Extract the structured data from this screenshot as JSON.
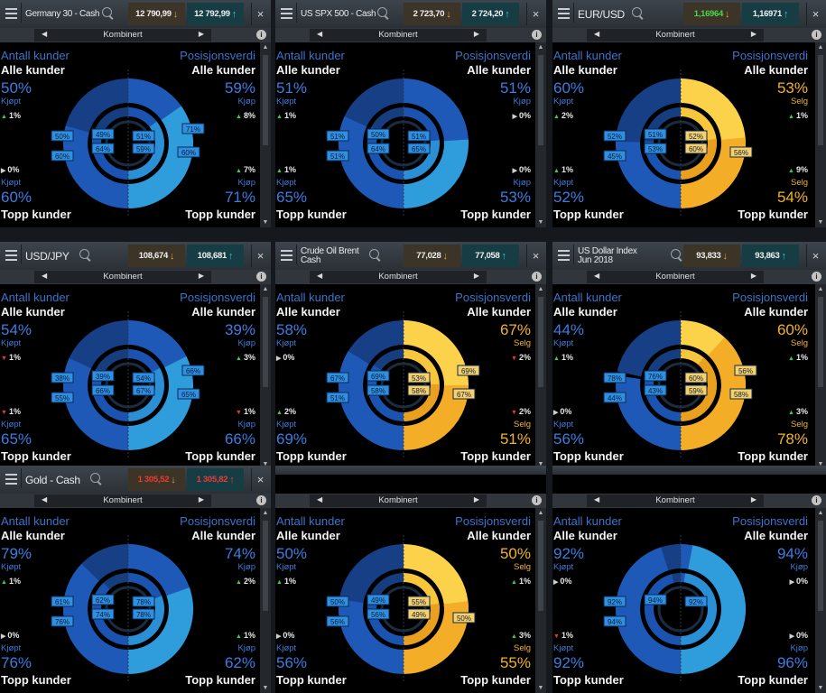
{
  "common": {
    "antall": "Antall kunder",
    "posisjon": "Posisjonsverdi",
    "alle": "Alle kunder",
    "topp": "Topp kunder",
    "mode": "Kombinert",
    "close": "×",
    "info": "i"
  },
  "panels": [
    {
      "symbol": "Germany 30 - Cash",
      "sell": "12 790,99",
      "buy": "12 792,99",
      "sell_arrow": "down",
      "buy_arrow": "up",
      "price_colors": [
        "#f0f0f0",
        "#f0f0f0"
      ],
      "tl": {
        "pct": "50%",
        "side": "Kjøpt",
        "chg": "1%",
        "dir": "up"
      },
      "tr": {
        "pct": "59%",
        "side": "Kjøp",
        "chg": "8%",
        "dir": "up"
      },
      "bl": {
        "pct": "60%",
        "side": "Kjøpt",
        "chg": "0%",
        "dir": "flat"
      },
      "br": {
        "pct": "71%",
        "side": "Kjøp",
        "chg": "7%",
        "dir": "up"
      },
      "arc_left": "blue",
      "arc_right": "blue",
      "colors": {
        "tl": "blue",
        "tr": "blue",
        "bl": "blue",
        "br": "blue"
      },
      "labels": [
        "50%",
        "49%",
        "51%",
        "60%",
        "64%",
        "59%",
        "60%",
        "71%"
      ]
    },
    {
      "symbol": "US SPX 500 - Cash",
      "sell": "2 723,70",
      "buy": "2 724,20",
      "sell_arrow": "down",
      "buy_arrow": "up",
      "price_colors": [
        "#f0f0f0",
        "#f0f0f0"
      ],
      "tl": {
        "pct": "51%",
        "side": "Kjøpt",
        "chg": "1%",
        "dir": "up"
      },
      "tr": {
        "pct": "51%",
        "side": "Kjøp",
        "chg": "0%",
        "dir": "flat"
      },
      "bl": {
        "pct": "65%",
        "side": "Kjøpt",
        "chg": "1%",
        "dir": "up"
      },
      "br": {
        "pct": "53%",
        "side": "Kjøp",
        "chg": "0%",
        "dir": "flat"
      },
      "arc_left": "blue",
      "arc_right": "blue",
      "colors": {
        "tl": "blue",
        "tr": "blue",
        "bl": "blue",
        "br": "blue"
      },
      "labels": [
        "51%",
        "50%",
        "51%",
        "51%",
        "64%",
        "65%"
      ]
    },
    {
      "symbol": "EUR/USD",
      "sell": "1,16964",
      "buy": "1,16971",
      "sell_arrow": "down",
      "buy_arrow": "up",
      "price_colors": [
        "#47d94a",
        "#f0f0f0"
      ],
      "tl": {
        "pct": "60%",
        "side": "Kjøpt",
        "chg": "2%",
        "dir": "up"
      },
      "tr": {
        "pct": "53%",
        "side": "Selg",
        "chg": "1%",
        "dir": "up"
      },
      "bl": {
        "pct": "52%",
        "side": "Kjøpt",
        "chg": "1%",
        "dir": "up"
      },
      "br": {
        "pct": "54%",
        "side": "Selg",
        "chg": "9%",
        "dir": "up"
      },
      "arc_left": "blue",
      "arc_right": "gold",
      "colors": {
        "tl": "blue",
        "tr": "gold",
        "bl": "blue",
        "br": "gold"
      },
      "labels": [
        "52%",
        "51%",
        "52%",
        "45%",
        "53%",
        "60%",
        "56%"
      ]
    },
    {
      "symbol": "USD/JPY",
      "sell": "108,674",
      "buy": "108,681",
      "sell_arrow": "down",
      "buy_arrow": "up",
      "price_colors": [
        "#f0f0f0",
        "#f0f0f0"
      ],
      "tl": {
        "pct": "54%",
        "side": "Kjøpt",
        "chg": "1%",
        "dir": "down"
      },
      "tr": {
        "pct": "39%",
        "side": "Kjøp",
        "chg": "3%",
        "dir": "up"
      },
      "bl": {
        "pct": "65%",
        "side": "Kjøpt",
        "chg": "1%",
        "dir": "down"
      },
      "br": {
        "pct": "66%",
        "side": "Kjøp",
        "chg": "1%",
        "dir": "down"
      },
      "arc_left": "blue",
      "arc_right": "blue",
      "colors": {
        "tl": "blue",
        "tr": "blue",
        "bl": "blue",
        "br": "blue"
      },
      "labels": [
        "38%",
        "39%",
        "54%",
        "55%",
        "66%",
        "67%",
        "65%",
        "66%"
      ]
    },
    {
      "symbol": "Crude Oil Brent\nCash",
      "sell": "77,028",
      "buy": "77,058",
      "sell_arrow": "down",
      "buy_arrow": "up",
      "price_colors": [
        "#f0f0f0",
        "#f0f0f0"
      ],
      "tl": {
        "pct": "58%",
        "side": "Kjøpt",
        "chg": "0%",
        "dir": "flat"
      },
      "tr": {
        "pct": "67%",
        "side": "Selg",
        "chg": "2%",
        "dir": "down"
      },
      "bl": {
        "pct": "69%",
        "side": "Kjøpt",
        "chg": "2%",
        "dir": "up"
      },
      "br": {
        "pct": "51%",
        "side": "Selg",
        "chg": "2%",
        "dir": "down"
      },
      "arc_left": "blue",
      "arc_right": "gold",
      "colors": {
        "tl": "blue",
        "tr": "gold",
        "bl": "blue",
        "br": "gold"
      },
      "labels": [
        "67%",
        "69%",
        "53%",
        "51%",
        "58%",
        "58%",
        "67%",
        "69%"
      ]
    },
    {
      "symbol": "US Dollar Index\nJun 2018",
      "sell": "93,833",
      "buy": "93,863",
      "sell_arrow": "down",
      "buy_arrow": "up",
      "price_colors": [
        "#f0f0f0",
        "#f0f0f0"
      ],
      "tl": {
        "pct": "44%",
        "side": "Kjøpt",
        "chg": "1%",
        "dir": "up"
      },
      "tr": {
        "pct": "60%",
        "side": "Selg",
        "chg": "1%",
        "dir": "up"
      },
      "bl": {
        "pct": "56%",
        "side": "Kjøpt",
        "chg": "0%",
        "dir": "flat"
      },
      "br": {
        "pct": "78%",
        "side": "Selg",
        "chg": "3%",
        "dir": "up"
      },
      "arc_left": "blue",
      "arc_right": "gold",
      "colors": {
        "tl": "blue",
        "tr": "gold",
        "bl": "blue",
        "br": "gold"
      },
      "labels": [
        "78%",
        "76%",
        "60%",
        "44%",
        "43%",
        "59%",
        "58%",
        "56%"
      ]
    },
    {
      "symbol": "Gold - Cash",
      "sell": "1 305,52",
      "buy": "1 305,82",
      "sell_arrow": "down",
      "buy_arrow": "up",
      "price_colors": [
        "#e83c34",
        "#e83c34"
      ],
      "tl": {
        "pct": "79%",
        "side": "Kjøpt",
        "chg": "1%",
        "dir": "up"
      },
      "tr": {
        "pct": "74%",
        "side": "Kjøp",
        "chg": "2%",
        "dir": "up"
      },
      "bl": {
        "pct": "76%",
        "side": "Kjøpt",
        "chg": "0%",
        "dir": "flat"
      },
      "br": {
        "pct": "62%",
        "side": "Kjøp",
        "chg": "1%",
        "dir": "up"
      },
      "arc_left": "blue",
      "arc_right": "blue",
      "colors": {
        "tl": "blue",
        "tr": "blue",
        "bl": "blue",
        "br": "blue"
      },
      "labels": [
        "61%",
        "62%",
        "78%",
        "76%",
        "74%",
        "78%"
      ]
    },
    {
      "symbol": "",
      "sell": "",
      "buy": "",
      "sell_arrow": "",
      "buy_arrow": "",
      "price_colors": [
        "#f0f0f0",
        "#f0f0f0"
      ],
      "tl": {
        "pct": "50%",
        "side": "Kjøpt",
        "chg": "1%",
        "dir": "up"
      },
      "tr": {
        "pct": "50%",
        "side": "Selg",
        "chg": "1%",
        "dir": "up"
      },
      "bl": {
        "pct": "56%",
        "side": "Kjøpt",
        "chg": "0%",
        "dir": "flat"
      },
      "br": {
        "pct": "55%",
        "side": "Selg",
        "chg": "3%",
        "dir": "up"
      },
      "arc_left": "blue",
      "arc_right": "gold",
      "colors": {
        "tl": "blue",
        "tr": "gold",
        "bl": "blue",
        "br": "gold"
      },
      "labels": [
        "50%",
        "49%",
        "55%",
        "56%",
        "56%",
        "49%",
        "50%"
      ]
    },
    {
      "symbol": "",
      "sell": "",
      "buy": "",
      "sell_arrow": "",
      "buy_arrow": "",
      "price_colors": [
        "#f0f0f0",
        "#f0f0f0"
      ],
      "tl": {
        "pct": "92%",
        "side": "Kjøpt",
        "chg": "0%",
        "dir": "flat"
      },
      "tr": {
        "pct": "94%",
        "side": "Kjøp",
        "chg": "0%",
        "dir": "flat"
      },
      "bl": {
        "pct": "92%",
        "side": "Kjøpt",
        "chg": "1%",
        "dir": "down"
      },
      "br": {
        "pct": "96%",
        "side": "Kjøp",
        "chg": "0%",
        "dir": "flat"
      },
      "arc_left": "blue",
      "arc_right": "blue",
      "colors": {
        "tl": "blue",
        "tr": "blue",
        "bl": "blue",
        "br": "blue"
      },
      "labels": [
        "92%",
        "94%",
        "92%",
        "94%"
      ]
    }
  ]
}
